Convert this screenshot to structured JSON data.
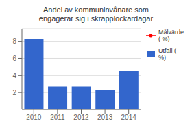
{
  "chart_data": {
    "type": "bar",
    "title": "Andel av kommuninvånare som\nengagerar sig i skräpplockardagar",
    "categories": [
      "2010",
      "2011",
      "2012",
      "2013",
      "2014"
    ],
    "series": [
      {
        "name": "Utfall (\n%)",
        "type": "bar",
        "color": "#3366cc",
        "values": [
          8.3,
          2.7,
          2.7,
          2.3,
          4.5
        ]
      },
      {
        "name": "Målvärde\n( %)",
        "type": "line",
        "color": "red",
        "marker": "o",
        "values": [
          null,
          null,
          null,
          null,
          null
        ]
      }
    ],
    "ylim": [
      0,
      9.5
    ],
    "yticks": [
      2,
      4,
      6,
      8
    ],
    "grid": true,
    "legend": "upper right"
  }
}
